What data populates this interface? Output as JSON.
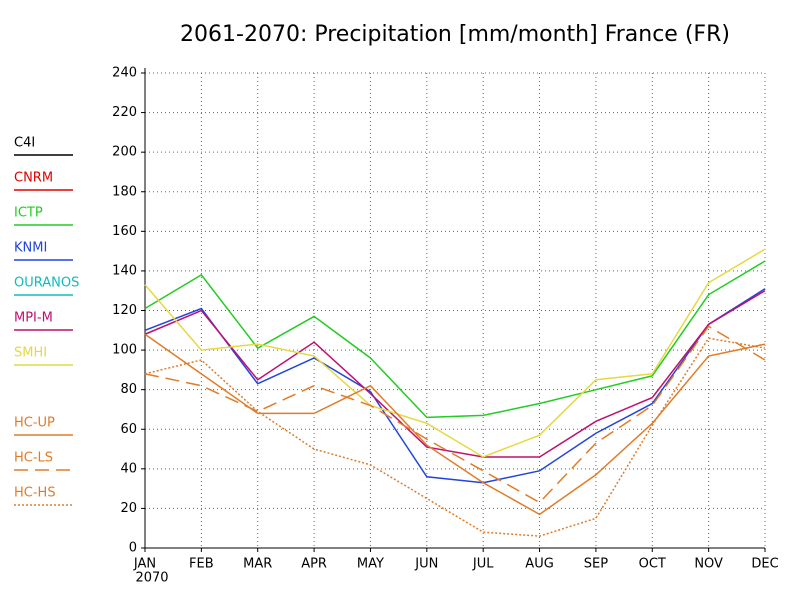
{
  "chart_data": {
    "type": "line",
    "title": "2061-2070: Precipitation [mm/month] France (FR)",
    "categories": [
      "JAN",
      "FEB",
      "MAR",
      "APR",
      "MAY",
      "JUN",
      "JUL",
      "AUG",
      "SEP",
      "OCT",
      "NOV",
      "DEC"
    ],
    "x_sublabel": "2070",
    "ylim": [
      0,
      240
    ],
    "yticks": [
      0,
      20,
      40,
      60,
      80,
      100,
      120,
      140,
      160,
      180,
      200,
      220,
      240
    ],
    "grid": true,
    "legend": "left",
    "series": [
      {
        "name": "C4I",
        "color": "#000000",
        "style": "solid",
        "values": [
          null,
          null,
          null,
          null,
          null,
          null,
          null,
          null,
          null,
          null,
          null,
          null
        ]
      },
      {
        "name": "CNRM",
        "color": "#e00000",
        "style": "solid",
        "values": [
          null,
          null,
          null,
          null,
          null,
          null,
          null,
          null,
          null,
          null,
          null,
          null
        ]
      },
      {
        "name": "ICTP",
        "color": "#22cc22",
        "style": "solid",
        "values": [
          121,
          138,
          101,
          117,
          96,
          66,
          67,
          73,
          80,
          87,
          128,
          145
        ]
      },
      {
        "name": "KNMI",
        "color": "#2244dd",
        "style": "solid",
        "values": [
          110,
          121,
          83,
          96,
          79,
          36,
          33,
          39,
          58,
          73,
          113,
          131
        ]
      },
      {
        "name": "OURANOS",
        "color": "#11bbbb",
        "style": "solid",
        "values": [
          null,
          null,
          null,
          null,
          null,
          null,
          null,
          null,
          null,
          null,
          null,
          null
        ]
      },
      {
        "name": "MPI-M",
        "color": "#c0106e",
        "style": "solid",
        "values": [
          108,
          120,
          85,
          104,
          78,
          51,
          46,
          46,
          64,
          76,
          113,
          130
        ]
      },
      {
        "name": "SMHI",
        "color": "#e6d840",
        "style": "solid",
        "values": [
          133,
          100,
          103,
          97,
          72,
          63,
          46,
          57,
          85,
          88,
          134,
          151
        ]
      },
      {
        "name": "HC-UP",
        "color": "#e07c28",
        "style": "solid",
        "values": [
          108,
          88,
          68,
          68,
          82,
          52,
          33,
          17,
          37,
          63,
          97,
          103
        ]
      },
      {
        "name": "HC-LS",
        "color": "#e07c28",
        "style": "dashed",
        "values": [
          88,
          82,
          69,
          82,
          72,
          55,
          39,
          23,
          53,
          72,
          112,
          95
        ]
      },
      {
        "name": "HC-HS",
        "color": "#e07c28",
        "style": "dotted",
        "values": [
          88,
          95,
          69,
          50,
          42,
          25,
          8,
          6,
          15,
          62,
          106,
          101
        ]
      }
    ]
  }
}
